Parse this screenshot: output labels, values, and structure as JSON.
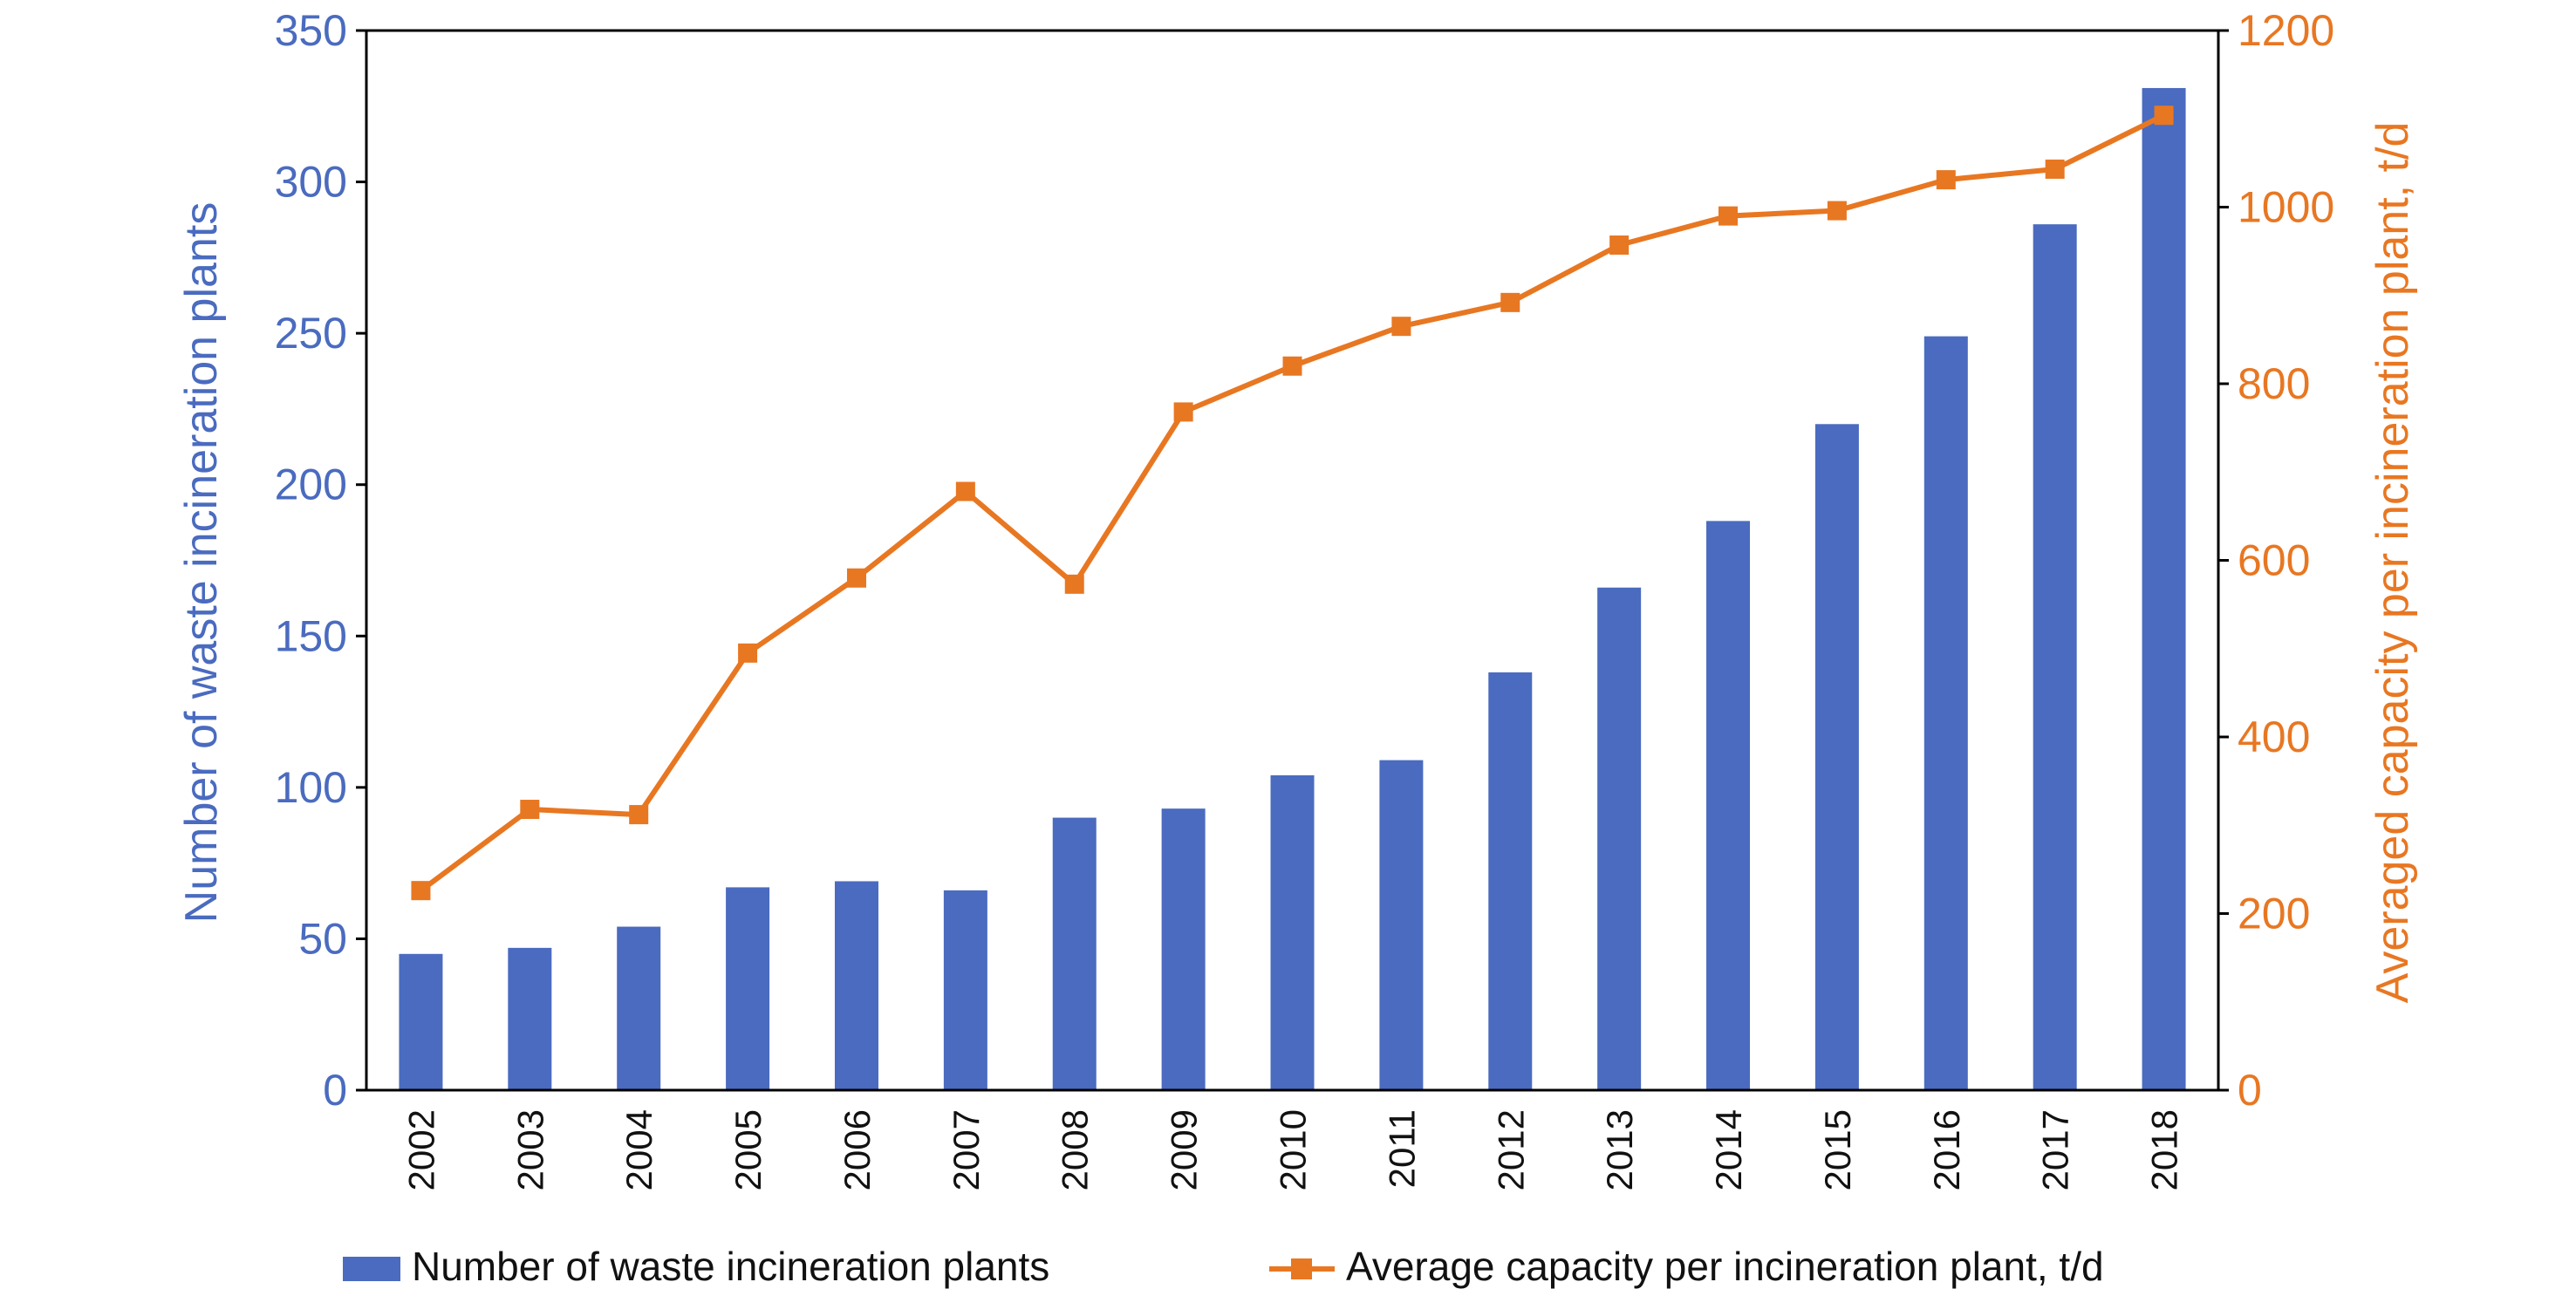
{
  "chart_data": {
    "type": "bar",
    "title": "",
    "categories": [
      "2002",
      "2003",
      "2004",
      "2005",
      "2006",
      "2007",
      "2008",
      "2009",
      "2010",
      "2011",
      "2012",
      "2013",
      "2014",
      "2015",
      "2016",
      "2017",
      "2018"
    ],
    "series": [
      {
        "name": "Number of waste incineration plants",
        "type": "bar",
        "axis": "left",
        "color": "#4a6bbf",
        "values": [
          45,
          47,
          54,
          67,
          69,
          66,
          90,
          93,
          104,
          109,
          138,
          166,
          188,
          220,
          249,
          286,
          331
        ]
      },
      {
        "name": "Average capacity per incineration plant, t/d",
        "type": "line",
        "axis": "right",
        "color": "#e87722",
        "marker": "square",
        "values": [
          226,
          318,
          312,
          495,
          580,
          678,
          573,
          768,
          820,
          865,
          892,
          957,
          990,
          996,
          1031,
          1043,
          1104
        ]
      }
    ],
    "ylabel": "Number of waste incineration plants",
    "ylim": [
      0,
      350
    ],
    "yticks": [
      "0",
      "50",
      "100",
      "150",
      "200",
      "250",
      "300",
      "350"
    ],
    "y2label": "Averaged capacity per incineration plant, t/d",
    "y2lim": [
      0,
      1200
    ],
    "y2ticks": [
      "0",
      "200",
      "400",
      "600",
      "800",
      "1000",
      "1200"
    ],
    "xlabel": "",
    "grid": false,
    "legend": "bottom"
  }
}
